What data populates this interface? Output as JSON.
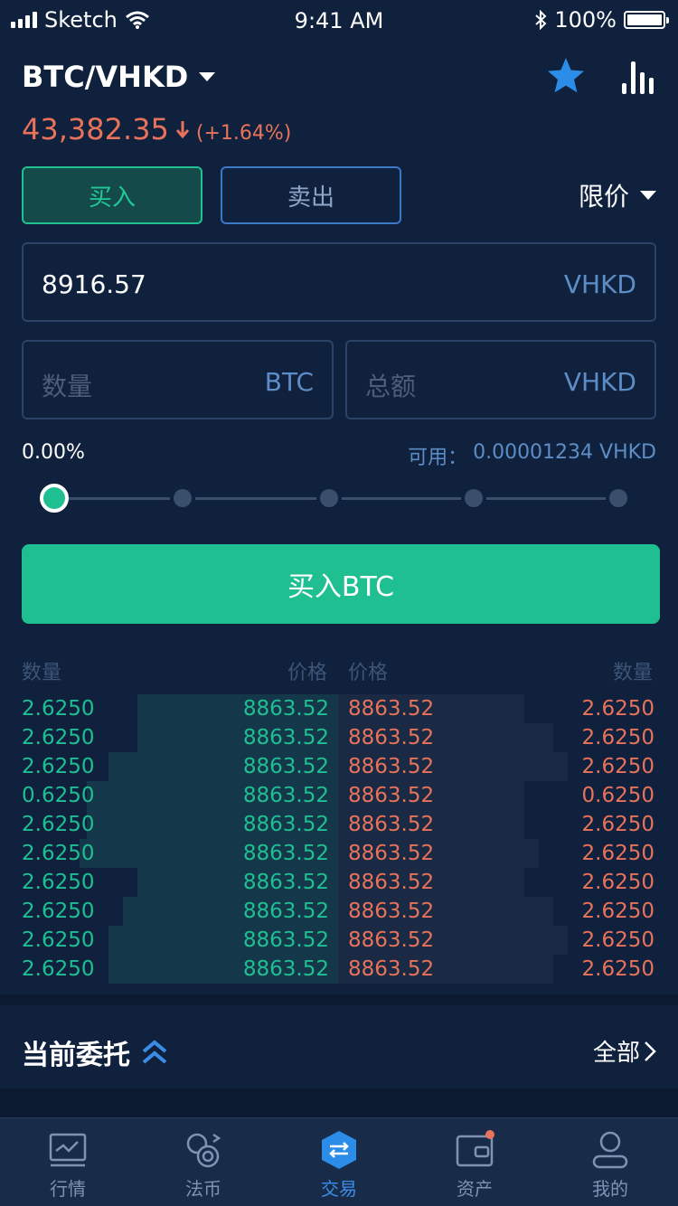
{
  "status": {
    "carrier": "Sketch",
    "time": "9:41 AM",
    "battery": "100%"
  },
  "header": {
    "pair": "BTC/VHKD",
    "price": "43,382.35",
    "change": "(+1.64%)"
  },
  "trade": {
    "buy_tab": "买入",
    "sell_tab": "卖出",
    "order_type": "限价",
    "price_value": "8916.57",
    "price_unit": "VHKD",
    "amount_placeholder": "数量",
    "amount_unit": "BTC",
    "total_placeholder": "总额",
    "total_unit": "VHKD",
    "percent": "0.00%",
    "available_label": "可用：",
    "available_value": "0.00001234 VHKD",
    "slider_level": 0,
    "submit": "买入BTC"
  },
  "orderbook": {
    "headers": {
      "bid_qty": "数量",
      "bid_price": "价格",
      "ask_price": "价格",
      "ask_qty": "数量"
    },
    "rows": [
      {
        "bid_qty": "2.6250",
        "bid_price": "8863.52",
        "ask_price": "8863.52",
        "ask_qty": "2.6250"
      },
      {
        "bid_qty": "2.6250",
        "bid_price": "8863.52",
        "ask_price": "8863.52",
        "ask_qty": "2.6250"
      },
      {
        "bid_qty": "2.6250",
        "bid_price": "8863.52",
        "ask_price": "8863.52",
        "ask_qty": "2.6250"
      },
      {
        "bid_qty": "0.6250",
        "bid_price": "8863.52",
        "ask_price": "8863.52",
        "ask_qty": "0.6250"
      },
      {
        "bid_qty": "2.6250",
        "bid_price": "8863.52",
        "ask_price": "8863.52",
        "ask_qty": "2.6250"
      },
      {
        "bid_qty": "2.6250",
        "bid_price": "8863.52",
        "ask_price": "8863.52",
        "ask_qty": "2.6250"
      },
      {
        "bid_qty": "2.6250",
        "bid_price": "8863.52",
        "ask_price": "8863.52",
        "ask_qty": "2.6250"
      },
      {
        "bid_qty": "2.6250",
        "bid_price": "8863.52",
        "ask_price": "8863.52",
        "ask_qty": "2.6250"
      },
      {
        "bid_qty": "2.6250",
        "bid_price": "8863.52",
        "ask_price": "8863.52",
        "ask_qty": "2.6250"
      },
      {
        "bid_qty": "2.6250",
        "bid_price": "8863.52",
        "ask_price": "8863.52",
        "ask_qty": "2.6250"
      }
    ]
  },
  "orders": {
    "title": "当前委托",
    "all": "全部"
  },
  "tabbar": [
    {
      "label": "行情",
      "icon": "market-chart-icon"
    },
    {
      "label": "法币",
      "icon": "fiat-exchange-icon"
    },
    {
      "label": "交易",
      "icon": "trade-icon"
    },
    {
      "label": "资产",
      "icon": "wallet-icon"
    },
    {
      "label": "我的",
      "icon": "profile-icon"
    }
  ],
  "colors": {
    "bg": "#0f213d",
    "buy": "#1fbf92",
    "sell": "#e8735a",
    "accent": "#3a8de6"
  }
}
